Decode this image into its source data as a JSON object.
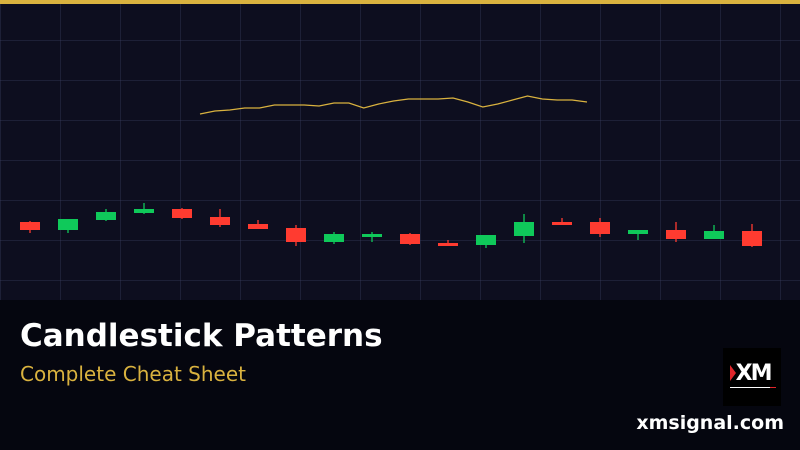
{
  "title": "Candlestick Patterns",
  "subtitle": "Complete Cheat Sheet",
  "website": "xmsignal.com",
  "logo_text": "XM",
  "colors": {
    "accent": "#d9b23f",
    "up": "#0fc95a",
    "down": "#ff3b30",
    "background": "#0d0e1f",
    "panel": "#05060f"
  },
  "chart_data": {
    "type": "candlestick",
    "candles": [
      {
        "open": 78,
        "close": 70,
        "high": 79,
        "low": 67
      },
      {
        "open": 70,
        "close": 81,
        "high": 81,
        "low": 67
      },
      {
        "open": 80,
        "close": 88,
        "high": 91,
        "low": 79
      },
      {
        "open": 87,
        "close": 91,
        "high": 97,
        "low": 86
      },
      {
        "open": 91,
        "close": 82,
        "high": 92,
        "low": 81
      },
      {
        "open": 83,
        "close": 75,
        "high": 91,
        "low": 73
      },
      {
        "open": 76,
        "close": 71,
        "high": 80,
        "low": 71
      },
      {
        "open": 72,
        "close": 58,
        "high": 75,
        "low": 54
      },
      {
        "open": 58,
        "close": 66,
        "high": 68,
        "low": 56
      },
      {
        "open": 63,
        "close": 66,
        "high": 68,
        "low": 58
      },
      {
        "open": 66,
        "close": 56,
        "high": 67,
        "low": 55
      },
      {
        "open": 57,
        "close": 54,
        "high": 60,
        "low": 54
      },
      {
        "open": 55,
        "close": 65,
        "high": 65,
        "low": 52
      },
      {
        "open": 64,
        "close": 78,
        "high": 86,
        "low": 57
      },
      {
        "open": 78,
        "close": 75,
        "high": 82,
        "low": 75
      },
      {
        "open": 78,
        "close": 66,
        "high": 82,
        "low": 63
      },
      {
        "open": 66,
        "close": 70,
        "high": 70,
        "low": 60
      },
      {
        "open": 70,
        "close": 61,
        "high": 78,
        "low": 58
      },
      {
        "open": 61,
        "close": 69,
        "high": 75,
        "low": 61
      },
      {
        "open": 69,
        "close": 54,
        "high": 76,
        "low": 53
      }
    ],
    "line": [
      186,
      189,
      190,
      192,
      192,
      195,
      195,
      195,
      194,
      197,
      197,
      192,
      196,
      199,
      201,
      201,
      201,
      202,
      198,
      193,
      196,
      200,
      204,
      201,
      200,
      200,
      198
    ]
  }
}
